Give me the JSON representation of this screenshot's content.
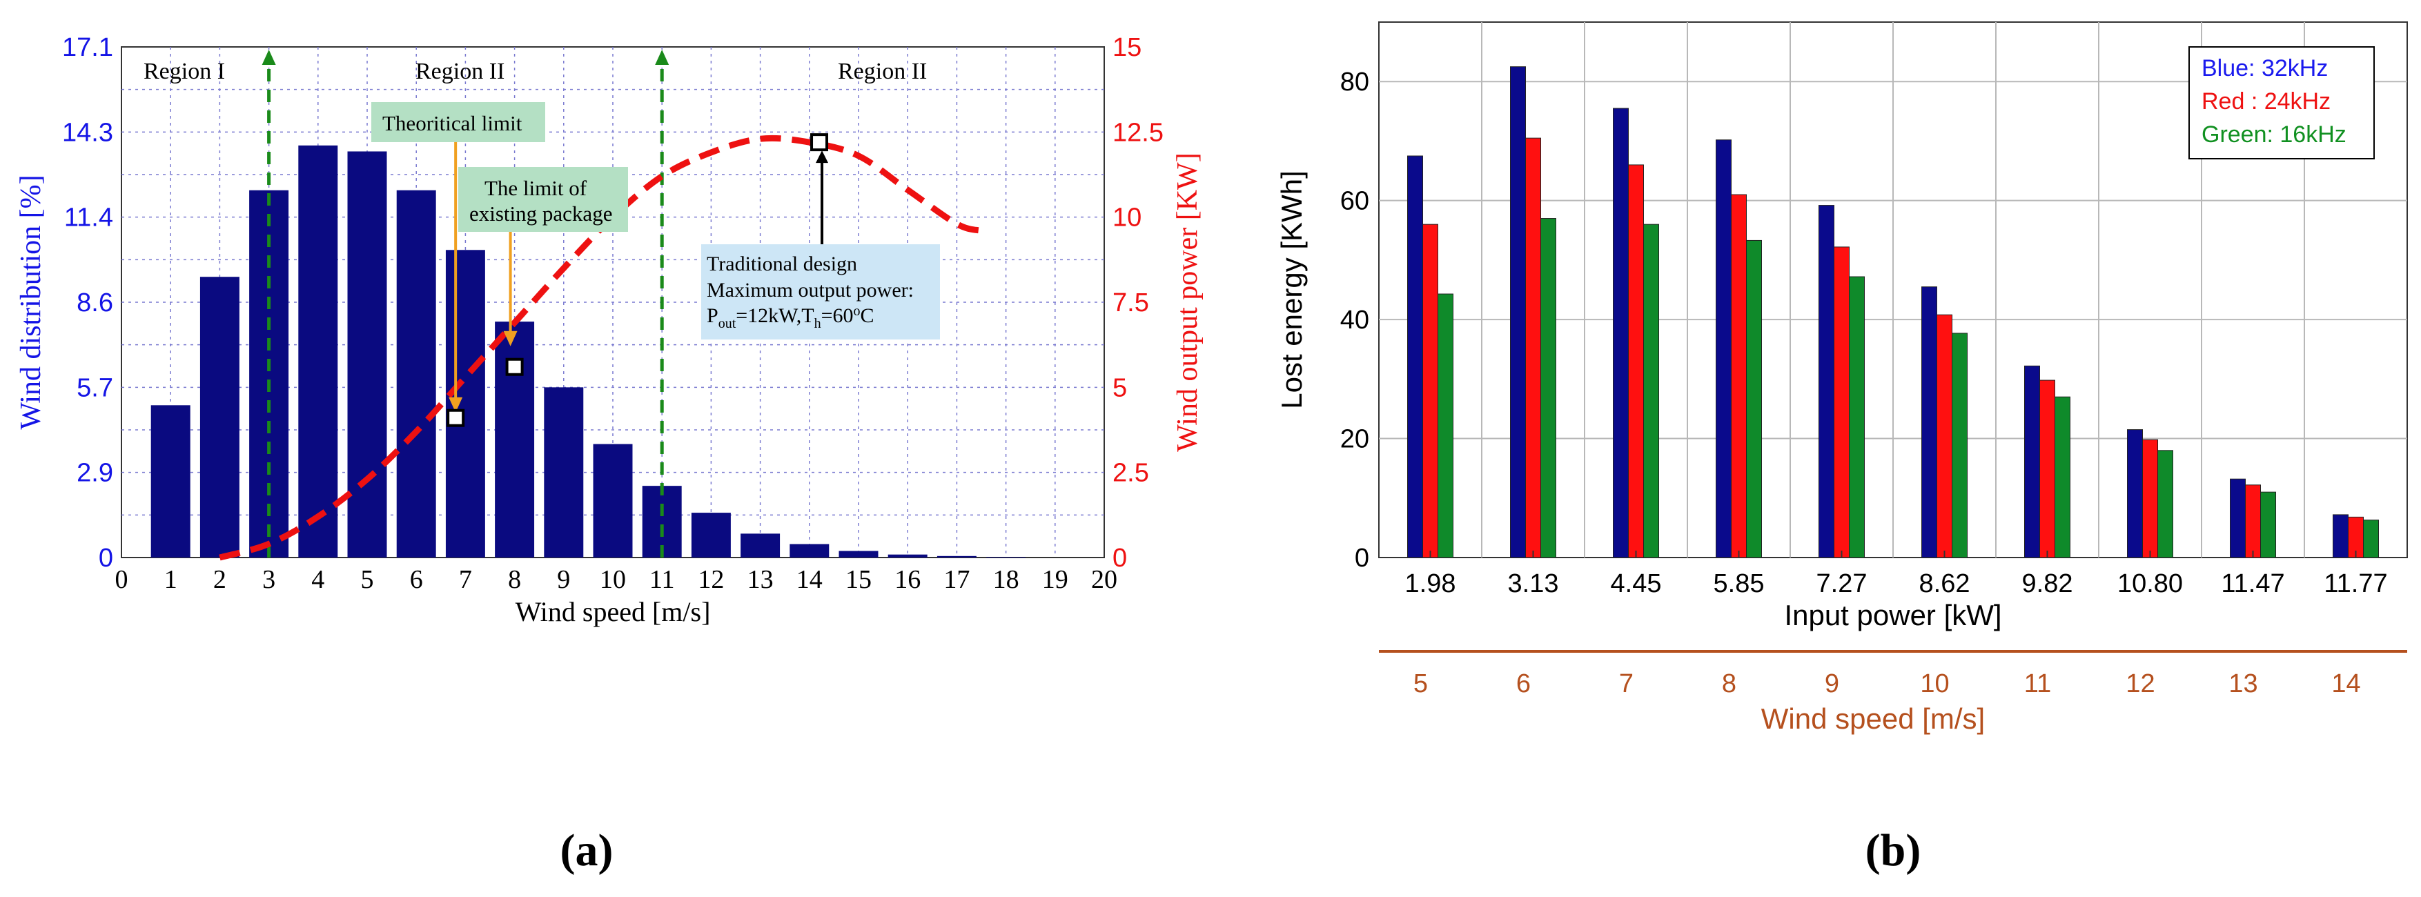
{
  "panel_labels": {
    "a": "(a)",
    "b": "(b)"
  },
  "colors": {
    "bar": "#0a0a80",
    "power_curve": "#ee1111",
    "left_axis": "#1414e6",
    "right_axis": "#ee1111",
    "marker_line": "#1a8a1a",
    "note_green": "#b4e0c4",
    "note_blue": "#cde6f6",
    "callout_arrow": "#f0a020",
    "blue_32": "#0a0a8c",
    "red_24": "#ff1010",
    "green_16": "#0f8a2a",
    "wind_axis": "#b5501e",
    "legend_text_blue": "#1a1aee",
    "legend_text_red": "#ee1111",
    "legend_text_green": "#109020"
  },
  "chart_data": [
    {
      "type": "bar",
      "xlabel": "Wind speed [m/s]",
      "ylabel": "Wind distribution [%]",
      "y2label": "Wind output power [KW]",
      "xlim": [
        0,
        20
      ],
      "ylim": [
        0,
        17.1
      ],
      "y2lim": [
        0,
        15
      ],
      "x_ticks": [
        "0",
        "1",
        "2",
        "3",
        "4",
        "5",
        "6",
        "7",
        "8",
        "9",
        "10",
        "11",
        "12",
        "13",
        "14",
        "15",
        "16",
        "17",
        "18",
        "19",
        "20"
      ],
      "y_ticks": [
        "0",
        "2.9",
        "5.7",
        "8.6",
        "11.4",
        "14.3",
        "17.1"
      ],
      "y2_ticks": [
        "0",
        "2.5",
        "5",
        "7.5",
        "10",
        "12.5",
        "15"
      ],
      "grid": true,
      "bars": {
        "name": "Wind distribution",
        "x": [
          1,
          2,
          3,
          4,
          5,
          6,
          7,
          8,
          9,
          10,
          11,
          12,
          13,
          14,
          15,
          16,
          17,
          18
        ],
        "values": [
          5.1,
          9.4,
          12.3,
          13.8,
          13.6,
          12.3,
          10.3,
          7.9,
          5.7,
          3.8,
          2.4,
          1.5,
          0.8,
          0.45,
          0.22,
          0.1,
          0.05,
          0.02
        ]
      },
      "power_curve": {
        "name": "Wind output power",
        "x": [
          2,
          3,
          4,
          5,
          6,
          7,
          8,
          9,
          10,
          11,
          12,
          13,
          14,
          15,
          16,
          17,
          17.5
        ],
        "values": [
          0,
          0.4,
          1.2,
          2.3,
          3.7,
          5.3,
          6.9,
          8.5,
          10,
          11.2,
          11.9,
          12.3,
          12.2,
          11.8,
          10.8,
          9.8,
          9.6
        ]
      },
      "region_lines_x": [
        3,
        11
      ],
      "region_labels": [
        "Region I",
        "Region II",
        "Region II"
      ],
      "markers": [
        {
          "x": 6.8,
          "y2": 4.1
        },
        {
          "x": 8.0,
          "y2": 5.6
        },
        {
          "x": 14.2,
          "y2": 12.2
        }
      ],
      "notes": {
        "theoretical": "Theoritical limit",
        "existing_1": "The limit of",
        "existing_2": "existing package",
        "design_title": "Traditional design",
        "design_line2": "Maximum output power:",
        "design_p": "P",
        "design_p_sub": "out",
        "design_mid": "=12kW,T",
        "design_t_sub": "h",
        "design_t_val": "=60",
        "design_deg": "o",
        "design_c": "C"
      }
    },
    {
      "type": "bar",
      "xlabel": "Input power [kW]",
      "ylabel": "Lost energy [KWh]",
      "x2label": "Wind speed [m/s]",
      "categories": [
        "1.98",
        "3.13",
        "4.45",
        "5.85",
        "7.27",
        "8.62",
        "9.82",
        "10.80",
        "11.47",
        "11.77"
      ],
      "wind_speeds": [
        "5",
        "6",
        "7",
        "8",
        "9",
        "10",
        "11",
        "12",
        "13",
        "14"
      ],
      "ylim": [
        0,
        90
      ],
      "y_ticks": [
        "0",
        "20",
        "40",
        "60",
        "80"
      ],
      "grid": true,
      "legend_position": "top-right",
      "series": [
        {
          "name": "Blue: 32kHz",
          "values": [
            67.5,
            82.5,
            75.5,
            70.2,
            59.2,
            45.5,
            32.2,
            21.5,
            13.2,
            7.2
          ]
        },
        {
          "name": "Red : 24kHz",
          "values": [
            56,
            70.5,
            66,
            61,
            52.2,
            40.8,
            29.8,
            19.8,
            12.2,
            6.8
          ]
        },
        {
          "name": "Green: 16kHz",
          "values": [
            44.3,
            57,
            56,
            53.3,
            47.2,
            37.7,
            27,
            18,
            11,
            6.3
          ]
        }
      ]
    }
  ]
}
